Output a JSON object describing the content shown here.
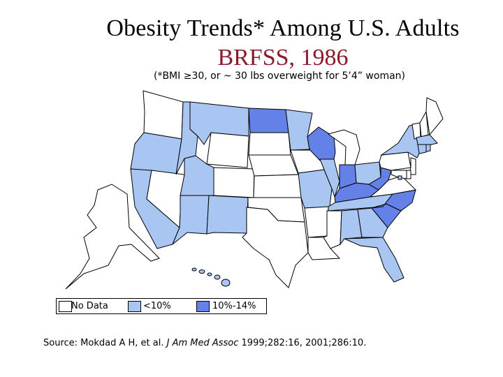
{
  "title": "Obesity Trends* Among U.S. Adults",
  "subtitle": "BRFSS, 1986",
  "note": "(*BMI ≥30, or ~ 30 lbs overweight for 5’4” woman)",
  "colors": {
    "no_data": "#ffffff",
    "lt10": "#a9c6f3",
    "10_14": "#6381e6",
    "border": "#000000"
  },
  "legend": [
    {
      "label": "No Data",
      "category": "no_data"
    },
    {
      "label": "<10%",
      "category": "lt10"
    },
    {
      "label": "10%-14%",
      "category": "10_14"
    }
  ],
  "states": {
    "WA": "no_data",
    "OR": "lt10",
    "CA": "lt10",
    "NV": "no_data",
    "ID": "lt10",
    "MT": "lt10",
    "WY": "no_data",
    "UT": "lt10",
    "AZ": "lt10",
    "CO": "no_data",
    "NM": "lt10",
    "ND": "10_14",
    "SD": "no_data",
    "NE": "no_data",
    "KS": "no_data",
    "OK": "no_data",
    "TX": "no_data",
    "MN": "lt10",
    "IA": "no_data",
    "MO": "lt10",
    "AR": "no_data",
    "LA": "no_data",
    "WI": "10_14",
    "IL": "lt10",
    "MI": "no_data",
    "IN": "10_14",
    "OH": "lt10",
    "KY": "10_14",
    "TN": "lt10",
    "MS": "no_data",
    "AL": "lt10",
    "GA": "lt10",
    "FL": "lt10",
    "SC": "10_14",
    "NC": "10_14",
    "VA": "no_data",
    "WV": "10_14",
    "PA": "no_data",
    "NY": "lt10",
    "VT": "no_data",
    "NH": "no_data",
    "ME": "no_data",
    "MA": "lt10",
    "RI": "lt10",
    "CT": "lt10",
    "NJ": "no_data",
    "DE": "no_data",
    "MD": "no_data",
    "DC": "lt10",
    "AK": "no_data",
    "HI": "lt10"
  },
  "source": {
    "prefix": "Source: Mokdad A H, et al. ",
    "journal": "J Am Med Assoc",
    "suffix": " 1999;282:16, 2001;286:10."
  }
}
